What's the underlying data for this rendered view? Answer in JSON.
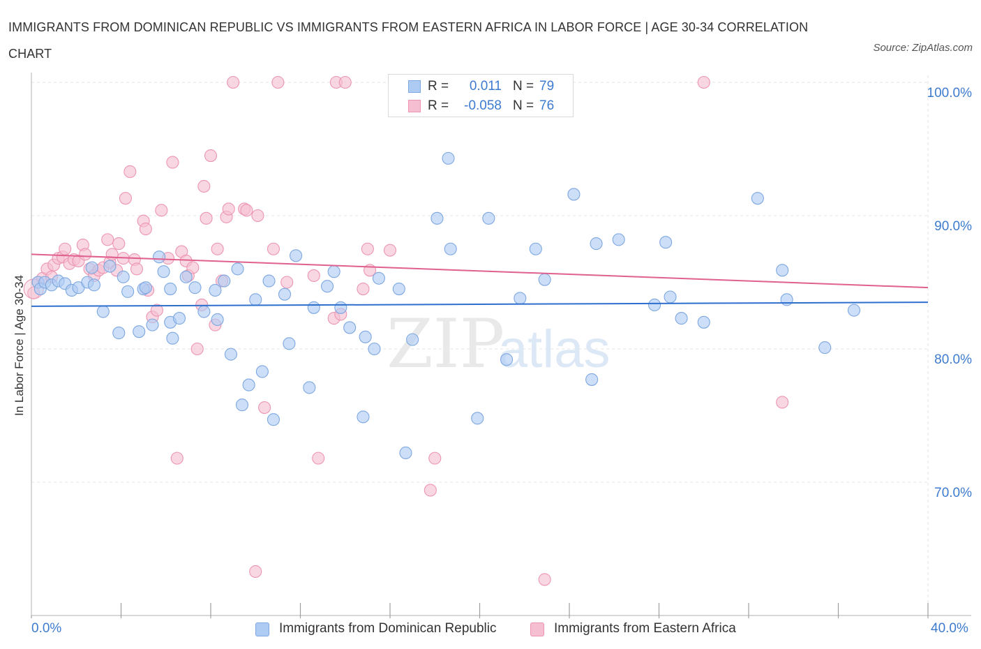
{
  "title": "IMMIGRANTS FROM DOMINICAN REPUBLIC VS IMMIGRANTS FROM EASTERN AFRICA IN LABOR FORCE | AGE 30-34 CORRELATION CHART",
  "source": "Source: ZipAtlas.com",
  "watermark": {
    "zip": "ZIP",
    "atlas": "atlas"
  },
  "legend": {
    "r_label": "R =",
    "n_label": "N =",
    "rows": [
      {
        "r": "0.011",
        "n": "79"
      },
      {
        "r": "-0.058",
        "n": "76"
      }
    ]
  },
  "colors": {
    "series1_fill": "#aecbf3",
    "series1_stroke": "#7da7e0",
    "series1_line": "#2e6fce",
    "series2_fill": "#f6bfd1",
    "series2_stroke": "#ec95b2",
    "series2_line": "#e0608f",
    "axis_text": "#3d7bd0",
    "grid": "#e4e4e4"
  },
  "chart_data": {
    "type": "scatter",
    "title": "IMMIGRANTS FROM DOMINICAN REPUBLIC VS IMMIGRANTS FROM EASTERN AFRICA IN LABOR FORCE | AGE 30-34 CORRELATION CHART",
    "xlabel": "",
    "ylabel": "In Labor Force | Age 30-34",
    "xlim": [
      0,
      40
    ],
    "ylim": [
      60,
      100
    ],
    "x_tick_labels": [
      "0.0%",
      "40.0%"
    ],
    "y_ticks": [
      70,
      80,
      90,
      100
    ],
    "y_tick_labels": [
      "70.0%",
      "80.0%",
      "90.0%",
      "100.0%"
    ],
    "grid": true,
    "legend_position": "top-center",
    "series": [
      {
        "name": "Immigrants from Dominican Republic",
        "r": 0.011,
        "n": 79,
        "trend": {
          "x": [
            0,
            40
          ],
          "y": [
            83.2,
            83.5
          ]
        },
        "points": [
          [
            0.3,
            85.0
          ],
          [
            0.4,
            84.5
          ],
          [
            0.6,
            85.0
          ],
          [
            0.9,
            84.8
          ],
          [
            1.2,
            85.1
          ],
          [
            1.5,
            84.9
          ],
          [
            1.8,
            84.4
          ],
          [
            2.1,
            84.6
          ],
          [
            2.5,
            85.0
          ],
          [
            2.8,
            84.8
          ],
          [
            2.7,
            86.1
          ],
          [
            3.5,
            86.2
          ],
          [
            3.2,
            82.8
          ],
          [
            3.9,
            81.2
          ],
          [
            4.1,
            85.4
          ],
          [
            4.3,
            84.3
          ],
          [
            4.8,
            81.3
          ],
          [
            5.0,
            84.5
          ],
          [
            5.1,
            84.6
          ],
          [
            5.4,
            81.8
          ],
          [
            5.7,
            86.9
          ],
          [
            5.9,
            85.8
          ],
          [
            6.2,
            82.0
          ],
          [
            6.3,
            80.8
          ],
          [
            6.6,
            82.3
          ],
          [
            6.9,
            85.4
          ],
          [
            7.3,
            84.6
          ],
          [
            7.7,
            82.8
          ],
          [
            8.2,
            84.4
          ],
          [
            8.3,
            82.2
          ],
          [
            8.6,
            85.1
          ],
          [
            8.9,
            79.6
          ],
          [
            9.2,
            86.0
          ],
          [
            9.4,
            75.8
          ],
          [
            9.7,
            77.3
          ],
          [
            10.0,
            83.7
          ],
          [
            10.3,
            78.3
          ],
          [
            10.6,
            85.1
          ],
          [
            10.8,
            74.7
          ],
          [
            11.3,
            84.1
          ],
          [
            11.5,
            80.4
          ],
          [
            11.8,
            87.0
          ],
          [
            12.4,
            77.1
          ],
          [
            12.6,
            83.1
          ],
          [
            13.2,
            84.7
          ],
          [
            13.5,
            85.8
          ],
          [
            13.8,
            83.1
          ],
          [
            14.2,
            81.6
          ],
          [
            14.8,
            74.9
          ],
          [
            14.9,
            80.9
          ],
          [
            15.3,
            80.0
          ],
          [
            15.5,
            85.3
          ],
          [
            16.4,
            84.5
          ],
          [
            16.7,
            72.2
          ],
          [
            17.0,
            80.7
          ],
          [
            18.1,
            89.8
          ],
          [
            18.7,
            87.5
          ],
          [
            18.6,
            94.3
          ],
          [
            19.9,
            74.8
          ],
          [
            20.4,
            89.8
          ],
          [
            21.2,
            79.2
          ],
          [
            21.8,
            83.8
          ],
          [
            22.5,
            87.5
          ],
          [
            24.2,
            91.6
          ],
          [
            25.0,
            77.7
          ],
          [
            25.2,
            87.9
          ],
          [
            26.2,
            88.2
          ],
          [
            27.8,
            83.3
          ],
          [
            28.3,
            88.0
          ],
          [
            28.5,
            83.9
          ],
          [
            29.0,
            82.3
          ],
          [
            30.0,
            82.0
          ],
          [
            32.4,
            91.3
          ],
          [
            33.5,
            85.9
          ],
          [
            33.7,
            83.7
          ],
          [
            35.4,
            80.1
          ],
          [
            36.7,
            82.9
          ],
          [
            22.9,
            85.2
          ],
          [
            6.2,
            84.5
          ]
        ]
      },
      {
        "name": "Immigrants from Eastern Africa",
        "r": -0.058,
        "n": 76,
        "trend": {
          "x": [
            0,
            40
          ],
          "y": [
            87.1,
            84.6
          ]
        },
        "points": [
          [
            0.1,
            84.2
          ],
          [
            0.3,
            85.0
          ],
          [
            0.5,
            85.3
          ],
          [
            0.7,
            86.0
          ],
          [
            0.9,
            85.4
          ],
          [
            1.0,
            86.3
          ],
          [
            1.2,
            86.8
          ],
          [
            1.4,
            86.9
          ],
          [
            1.5,
            87.5
          ],
          [
            1.7,
            86.4
          ],
          [
            1.9,
            86.7
          ],
          [
            2.1,
            86.6
          ],
          [
            2.3,
            87.8
          ],
          [
            2.4,
            87.1
          ],
          [
            2.6,
            86.0
          ],
          [
            2.8,
            85.5
          ],
          [
            3.0,
            85.9
          ],
          [
            3.2,
            86.1
          ],
          [
            3.4,
            88.2
          ],
          [
            3.5,
            86.5
          ],
          [
            3.6,
            87.1
          ],
          [
            3.8,
            85.9
          ],
          [
            3.9,
            87.9
          ],
          [
            4.1,
            86.8
          ],
          [
            4.2,
            91.3
          ],
          [
            4.4,
            93.3
          ],
          [
            4.6,
            86.7
          ],
          [
            4.7,
            86.0
          ],
          [
            5.0,
            89.6
          ],
          [
            5.1,
            89.0
          ],
          [
            5.2,
            84.4
          ],
          [
            5.4,
            82.4
          ],
          [
            5.6,
            82.9
          ],
          [
            5.8,
            90.4
          ],
          [
            6.1,
            86.8
          ],
          [
            6.3,
            94.0
          ],
          [
            6.5,
            71.8
          ],
          [
            6.7,
            87.3
          ],
          [
            6.9,
            86.6
          ],
          [
            7.0,
            85.5
          ],
          [
            7.2,
            86.1
          ],
          [
            7.4,
            80.0
          ],
          [
            7.6,
            83.3
          ],
          [
            7.7,
            92.2
          ],
          [
            7.8,
            89.8
          ],
          [
            8.0,
            94.5
          ],
          [
            8.2,
            81.8
          ],
          [
            8.3,
            87.5
          ],
          [
            8.5,
            85.1
          ],
          [
            8.7,
            89.9
          ],
          [
            8.8,
            90.5
          ],
          [
            9.0,
            100.0
          ],
          [
            9.5,
            90.5
          ],
          [
            9.6,
            90.4
          ],
          [
            10.0,
            63.3
          ],
          [
            10.1,
            90.0
          ],
          [
            10.4,
            75.6
          ],
          [
            10.8,
            87.5
          ],
          [
            11.0,
            100.0
          ],
          [
            11.4,
            85.0
          ],
          [
            12.6,
            85.5
          ],
          [
            12.8,
            71.8
          ],
          [
            13.5,
            82.3
          ],
          [
            13.6,
            100.0
          ],
          [
            13.8,
            82.6
          ],
          [
            14.0,
            100.0
          ],
          [
            14.8,
            84.5
          ],
          [
            15.0,
            87.5
          ],
          [
            15.1,
            85.9
          ],
          [
            16.0,
            87.4
          ],
          [
            16.9,
            100.0
          ],
          [
            17.8,
            69.4
          ],
          [
            18.0,
            71.8
          ],
          [
            22.9,
            62.7
          ],
          [
            30.0,
            100.0
          ],
          [
            33.5,
            76.0
          ]
        ]
      }
    ]
  },
  "bottom_legend": [
    "Immigrants from Dominican Republic",
    "Immigrants from Eastern Africa"
  ]
}
